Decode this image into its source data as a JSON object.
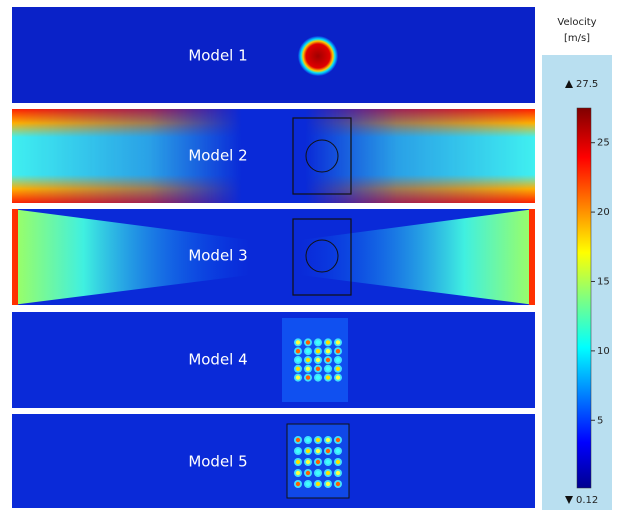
{
  "panels": [
    {
      "label": "Model 1"
    },
    {
      "label": "Model 2"
    },
    {
      "label": "Model 3"
    },
    {
      "label": "Model 4"
    },
    {
      "label": "Model 5"
    }
  ],
  "colorbar": {
    "title": "Velocity",
    "unit": "[m/s]",
    "max": 27.5,
    "min": 0.12,
    "ticks": [
      5,
      10,
      15,
      20,
      25
    ]
  }
}
